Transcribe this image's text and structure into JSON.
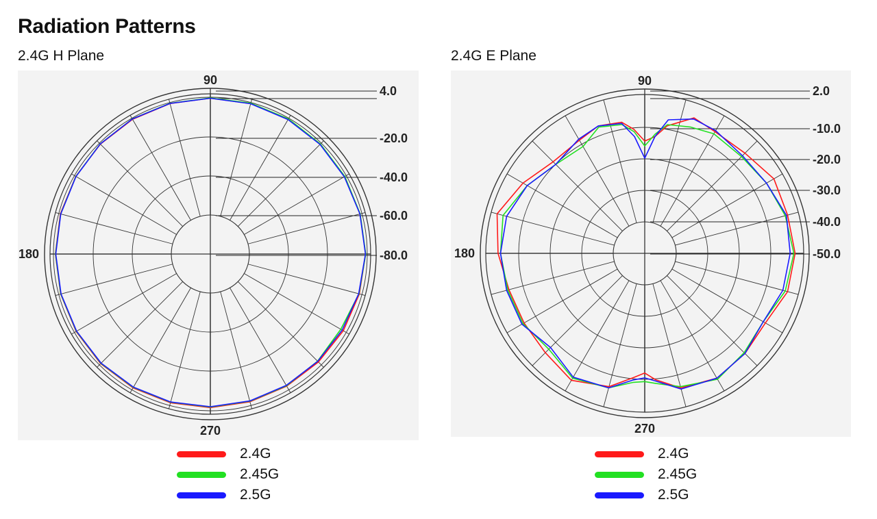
{
  "page": {
    "heading": "Radiation Patterns",
    "colors": {
      "background": "#ffffff",
      "panel": "#f3f3f3",
      "grid": "#333333"
    }
  },
  "chart_data": [
    {
      "type": "line",
      "subtitle": "2.4G H Plane",
      "polar": true,
      "angle_labels": {
        "top": "90",
        "left": "180",
        "bottom": "270"
      },
      "radial_tick_labels": [
        "4.0",
        "-20.0",
        "-40.0",
        "-60.0",
        "-80.0"
      ],
      "radial_range": [
        -80,
        4
      ],
      "legend": [
        {
          "name": "2.4G",
          "color": "#ff1a1a"
        },
        {
          "name": "2.45G",
          "color": "#22e022"
        },
        {
          "name": "2.5G",
          "color": "#1a1aff"
        }
      ],
      "x": [
        0,
        15,
        30,
        45,
        60,
        75,
        90,
        105,
        120,
        135,
        150,
        165,
        180,
        195,
        210,
        225,
        240,
        255,
        270,
        285,
        300,
        315,
        330,
        345
      ],
      "series": [
        {
          "name": "2.4G",
          "color": "#ff1a1a",
          "values": [
            0.5,
            0.3,
            0.3,
            0.6,
            0.7,
            0.9,
            1.0,
            0.9,
            0.8,
            0.7,
            0.6,
            0.5,
            0.3,
            0.3,
            0.3,
            0.4,
            0.1,
            -0.3,
            -0.6,
            -1.0,
            -1.3,
            -1.2,
            -0.7,
            -0.2
          ]
        },
        {
          "name": "2.45G",
          "color": "#22e022",
          "values": [
            0.6,
            0.4,
            0.5,
            0.8,
            1.1,
            1.2,
            1.1,
            1.1,
            1.1,
            0.9,
            0.5,
            0.3,
            0.2,
            0.2,
            0.1,
            0.1,
            -0.3,
            -0.7,
            -1.0,
            -1.4,
            -1.6,
            -2.0,
            -2.7,
            -0.5
          ]
        },
        {
          "name": "2.5G",
          "color": "#1a1aff",
          "values": [
            0.4,
            0.2,
            0.1,
            0.4,
            0.6,
            0.8,
            0.9,
            1.0,
            1.0,
            0.8,
            0.4,
            0.2,
            0.0,
            0.0,
            -0.1,
            -0.1,
            -0.5,
            -0.9,
            -1.2,
            -1.6,
            -1.9,
            -1.9,
            -1.6,
            -0.7
          ]
        }
      ]
    },
    {
      "type": "line",
      "subtitle": "2.4G E Plane",
      "polar": true,
      "angle_labels": {
        "top": "90",
        "left": "180",
        "bottom": "270"
      },
      "radial_tick_labels": [
        "2.0",
        "-10.0",
        "-20.0",
        "-30.0",
        "-40.0",
        "-50.0"
      ],
      "radial_range": [
        -50,
        2
      ],
      "legend": [
        {
          "name": "2.4G",
          "color": "#ff1a1a"
        },
        {
          "name": "2.45G",
          "color": "#22e022"
        },
        {
          "name": "2.5G",
          "color": "#1a1aff"
        }
      ],
      "x": [
        0,
        15,
        30,
        45,
        60,
        70,
        80,
        85,
        90,
        95,
        100,
        110,
        120,
        135,
        150,
        165,
        180,
        195,
        210,
        225,
        240,
        255,
        265,
        270,
        275,
        285,
        300,
        315,
        330,
        345
      ],
      "series": [
        {
          "name": "2.4G",
          "color": "#ff1a1a",
          "values": [
            -1.5,
            -2.5,
            -2.0,
            -5.0,
            -5.5,
            -4.0,
            -10.0,
            -15.0,
            -17.0,
            -12.0,
            -8.5,
            -7.5,
            -9.5,
            -10.0,
            -5.5,
            -0.5,
            -3.0,
            -5.5,
            -6.0,
            -5.5,
            -3.0,
            -6.5,
            -12.0,
            -14.0,
            -11.0,
            -6.0,
            -4.0,
            -5.0,
            -6.0,
            -2.5
          ]
        },
        {
          "name": "2.45G",
          "color": "#22e022",
          "values": [
            -2.0,
            -3.5,
            -5.5,
            -7.0,
            -6.5,
            -8.0,
            -9.5,
            -14.0,
            -19.0,
            -13.0,
            -9.5,
            -8.0,
            -12.5,
            -11.5,
            -7.5,
            -3.0,
            -4.0,
            -5.0,
            -5.5,
            -7.5,
            -4.0,
            -6.0,
            -10.0,
            -10.5,
            -9.5,
            -6.5,
            -3.5,
            -5.5,
            -7.0,
            -3.5
          ]
        },
        {
          "name": "2.5G",
          "color": "#1a1aff",
          "values": [
            -3.5,
            -3.0,
            -5.5,
            -6.5,
            -5.0,
            -4.5,
            -7.5,
            -15.0,
            -24.0,
            -15.0,
            -9.0,
            -7.5,
            -9.0,
            -11.5,
            -7.5,
            -4.5,
            -4.0,
            -4.5,
            -5.0,
            -8.5,
            -4.5,
            -6.0,
            -11.0,
            -12.0,
            -10.5,
            -5.5,
            -4.0,
            -5.0,
            -7.0,
            -4.5
          ]
        }
      ]
    }
  ]
}
